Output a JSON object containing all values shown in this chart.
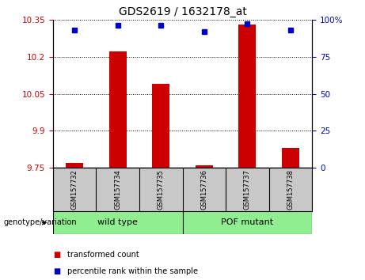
{
  "title": "GDS2619 / 1632178_at",
  "samples": [
    "GSM157732",
    "GSM157734",
    "GSM157735",
    "GSM157736",
    "GSM157737",
    "GSM157738"
  ],
  "transformed_counts": [
    9.77,
    10.22,
    10.09,
    9.76,
    10.33,
    9.83
  ],
  "percentile_ranks": [
    93,
    96,
    96,
    92,
    97,
    93
  ],
  "y_min": 9.75,
  "y_max": 10.35,
  "y_ticks": [
    9.75,
    9.9,
    10.05,
    10.2,
    10.35
  ],
  "y_tick_labels": [
    "9.75",
    "9.9",
    "10.05",
    "10.2",
    "10.35"
  ],
  "y2_ticks": [
    0,
    25,
    50,
    75,
    100
  ],
  "y2_tick_labels": [
    "0",
    "25",
    "50",
    "75",
    "100%"
  ],
  "bar_color": "#cc0000",
  "dot_color": "#0000cc",
  "group1_label": "wild type",
  "group1_samples": [
    0,
    1,
    2
  ],
  "group2_label": "POF mutant",
  "group2_samples": [
    3,
    4,
    5
  ],
  "group_color": "#90ee90",
  "group_label": "genotype/variation",
  "legend_red_label": "transformed count",
  "legend_blue_label": "percentile rank within the sample",
  "left_tick_color": "#cc0000",
  "right_tick_color": "#0000cc",
  "label_bg_color": "#c8c8c8"
}
